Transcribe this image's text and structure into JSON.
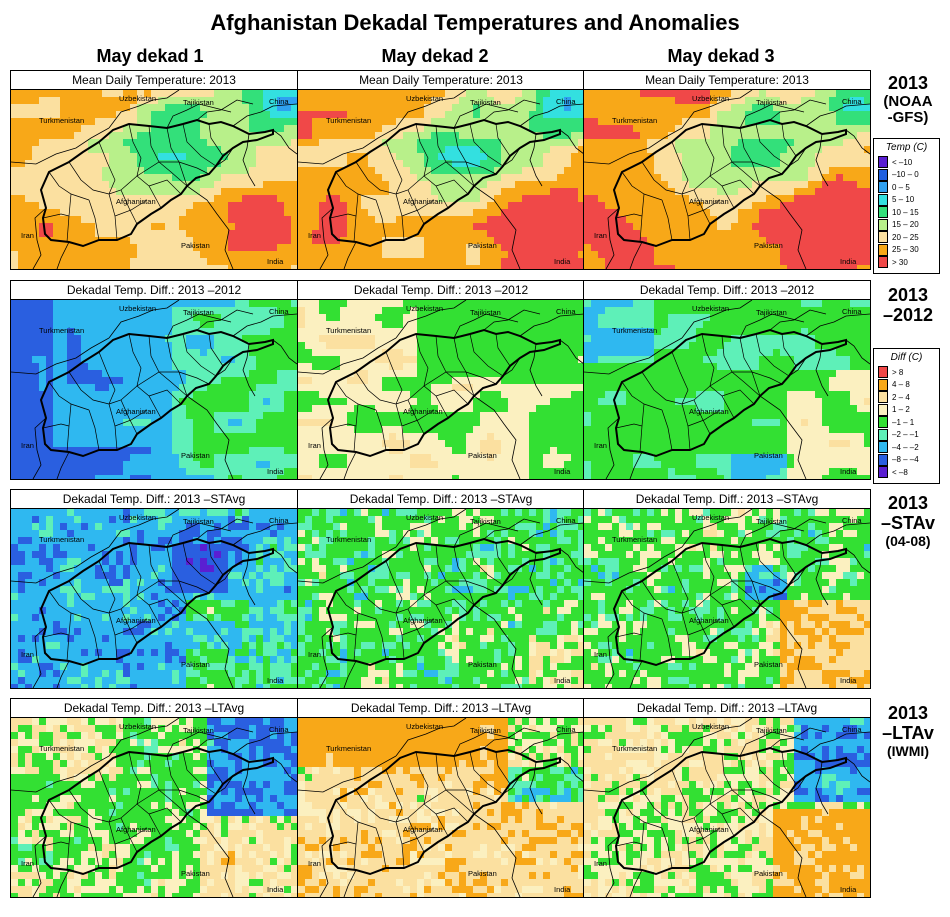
{
  "title": "Afghanistan Dekadal Temperatures and Anomalies",
  "columns": [
    "May dekad 1",
    "May dekad 2",
    "May dekad 3"
  ],
  "rows": [
    {
      "label_lines": [
        "2013",
        "(NOAA",
        "-GFS)"
      ],
      "panel_title": "Mean Daily Temperature: 2013",
      "scale": "temp"
    },
    {
      "label_lines": [
        "2013",
        "–2012"
      ],
      "panel_title": "Dekadal Temp. Diff.: 2013 –2012",
      "scale": "diff"
    },
    {
      "label_lines": [
        "2013",
        "–STAv",
        "(04-08)"
      ],
      "panel_title": "Dekadal Temp. Diff.: 2013 –STAvg",
      "scale": "diff"
    },
    {
      "label_lines": [
        "2013",
        "–LTAv",
        "(IWMI)"
      ],
      "panel_title": "Dekadal Temp. Diff.: 2013 –LTAvg",
      "scale": "diff"
    }
  ],
  "map_labels": {
    "uzbekistan": "Uzbekistan",
    "tajikistan": "Tajikistan",
    "china": "China",
    "turkmenistan": "Turkmenistan",
    "afghanistan": "Afghanistan",
    "iran": "Iran",
    "pakistan": "Pakistan",
    "india": "India"
  },
  "legends": {
    "temp": {
      "title": "Temp (C)",
      "items": [
        {
          "label": "< –10",
          "color": "#5a1fd2"
        },
        {
          "label": "–10 –  0",
          "color": "#1f5fe0"
        },
        {
          "label": "0 –  5",
          "color": "#2fa0f0"
        },
        {
          "label": "5 – 10",
          "color": "#33e0e0"
        },
        {
          "label": "10 – 15",
          "color": "#33e07a"
        },
        {
          "label": "15 – 20",
          "color": "#b8f08a"
        },
        {
          "label": "20 – 25",
          "color": "#fbe0a0"
        },
        {
          "label": "25 – 30",
          "color": "#f8a818"
        },
        {
          "label": "> 30",
          "color": "#f04848"
        }
      ]
    },
    "diff": {
      "title": "Diff (C)",
      "items": [
        {
          "label": "> 8",
          "color": "#f04848"
        },
        {
          "label": "4 – 8",
          "color": "#f8a818"
        },
        {
          "label": "2 – 4",
          "color": "#fbe0a0"
        },
        {
          "label": "1 – 2",
          "color": "#fbf0c0"
        },
        {
          "label": "–1 – 1",
          "color": "#33e033"
        },
        {
          "label": "–2 – –1",
          "color": "#5ef0b8"
        },
        {
          "label": "–4 – –2",
          "color": "#2fb8f0"
        },
        {
          "label": "–8 – –4",
          "color": "#2a5fe0"
        },
        {
          "label": "< –8",
          "color": "#5a1fd2"
        }
      ]
    }
  }
}
